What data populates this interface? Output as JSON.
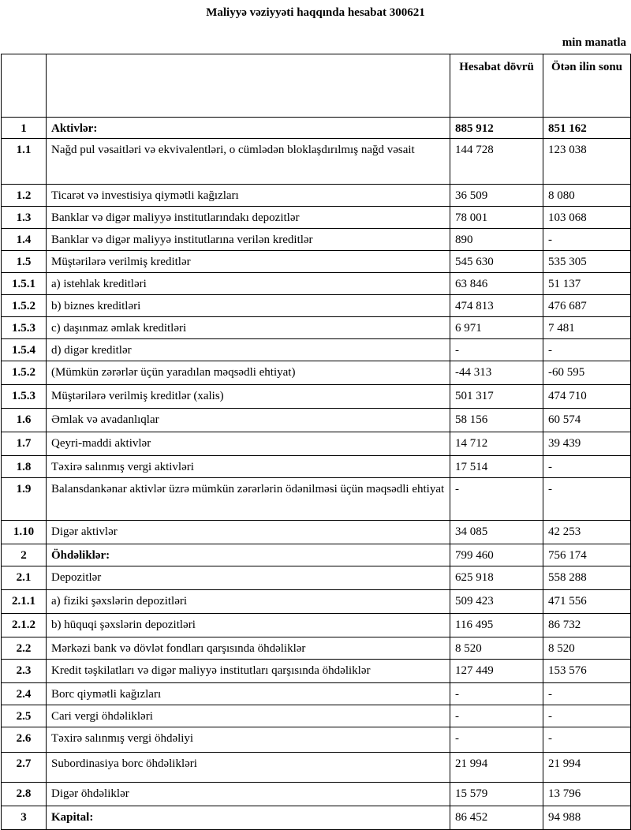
{
  "title": "Maliyyə vəziyyəti haqqında hesabat 300621",
  "unit": "min manatla",
  "header": {
    "col1": "",
    "col2": "",
    "col3": "Hesabat dövrü",
    "col4": "Ötən ilin sonu"
  },
  "rows": [
    {
      "no": "1",
      "label": "Aktivlər:",
      "cur": "885 912",
      "prev": "851 162",
      "bold_label": true,
      "bold_values": true
    },
    {
      "no": "1.1",
      "label": "Nağd pul vəsaitləri və  ekvivalentləri, o cümlədən bloklaşdırılmış nağd vəsait",
      "cur": "144 728",
      "prev": "123 038"
    },
    {
      "no": "1.2",
      "label": "Ticarət və investisiya qiymətli kağızları",
      "cur": "36 509",
      "prev": "8 080"
    },
    {
      "no": "1.3",
      "label": "Banklar və digər maliyyə institutlarındakı depozitlər",
      "cur": "78 001",
      "prev": "103 068"
    },
    {
      "no": "1.4",
      "label": "Banklar və digər maliyyə institutlarına verilən kreditlər",
      "cur": "890",
      "prev": "-"
    },
    {
      "no": "1.5",
      "label": "Müştərilərə verilmiş kreditlər",
      "cur": "545 630",
      "prev": "535 305"
    },
    {
      "no": "1.5.1",
      "label": "a) istehlak kreditləri",
      "cur": "63 846",
      "prev": "51 137"
    },
    {
      "no": "1.5.2",
      "label": "b) biznes kreditləri",
      "cur": "474 813",
      "prev": "476 687"
    },
    {
      "no": "1.5.3",
      "label": "c) daşınmaz əmlak kreditləri",
      "cur": "6 971",
      "prev": "7 481"
    },
    {
      "no": "1.5.4",
      "label": "d) digər kreditlər",
      "cur": "-",
      "prev": "-"
    },
    {
      "no": "1.5.2",
      "label": "(Mümkün zərərlər üçün yaradılan məqsədli ehtiyat)",
      "cur": "-44 313",
      "prev": "-60 595"
    },
    {
      "no": "1.5.3",
      "label": "Müştərilərə verilmiş kreditlər (xalis)",
      "cur": "501 317",
      "prev": "474 710"
    },
    {
      "no": "1.6",
      "label": "Əmlak və avadanlıqlar",
      "cur": "58 156",
      "prev": "60 574"
    },
    {
      "no": "1.7",
      "label": "Qeyri-maddi aktivlər",
      "cur": "14 712",
      "prev": "39 439"
    },
    {
      "no": "1.8",
      "label": "Təxirə salınmış vergi aktivləri",
      "cur": "17 514",
      "prev": "-"
    },
    {
      "no": "1.9",
      "label": "Balansdankənar aktivlər üzrə mümkün zərərlərin ödənilməsi üçün məqsədli ehtiyat",
      "cur": "-",
      "prev": "-"
    },
    {
      "no": "1.10",
      "label": "Digər aktivlər",
      "cur": "34 085",
      "prev": "42 253"
    },
    {
      "no": "2",
      "label": "Öhdəliklər:",
      "cur": "799 460",
      "prev": "756 174",
      "bold_label": true
    },
    {
      "no": "2.1",
      "label": "Depozitlər",
      "cur": "625 918",
      "prev": "558 288"
    },
    {
      "no": "2.1.1",
      "label": "a) fiziki şəxslərin depozitləri",
      "cur": "509 423",
      "prev": "471 556"
    },
    {
      "no": "2.1.2",
      "label": "b) hüquqi şəxslərin depozitləri",
      "cur": "116 495",
      "prev": "86 732"
    },
    {
      "no": "2.2",
      "label": "Mərkəzi bank və dövlət fondları qarşısında öhdəliklər",
      "cur": "8 520",
      "prev": "8 520"
    },
    {
      "no": "2.3",
      "label": "Kredit təşkilatları və digər maliyyə institutları qarşısında öhdəliklər",
      "cur": "127 449",
      "prev": "153 576"
    },
    {
      "no": "2.4",
      "label": "Borc qiymətli kağızları",
      "cur": "-",
      "prev": "-"
    },
    {
      "no": "2.5",
      "label": "Cari vergi öhdəlikləri",
      "cur": "-",
      "prev": "-"
    },
    {
      "no": "2.6",
      "label": "Təxirə salınmış vergi öhdəliyi",
      "cur": "-",
      "prev": "-"
    },
    {
      "no": "2.7",
      "label": "Subordinasiya borc öhdəlikləri",
      "cur": "21 994",
      "prev": "21 994"
    },
    {
      "no": "2.8",
      "label": "Digər öhdəliklər",
      "cur": "15 579",
      "prev": "13 796"
    },
    {
      "no": "3",
      "label": "Kapital:",
      "cur": "86 452",
      "prev": "94 988",
      "bold_label": true
    }
  ]
}
